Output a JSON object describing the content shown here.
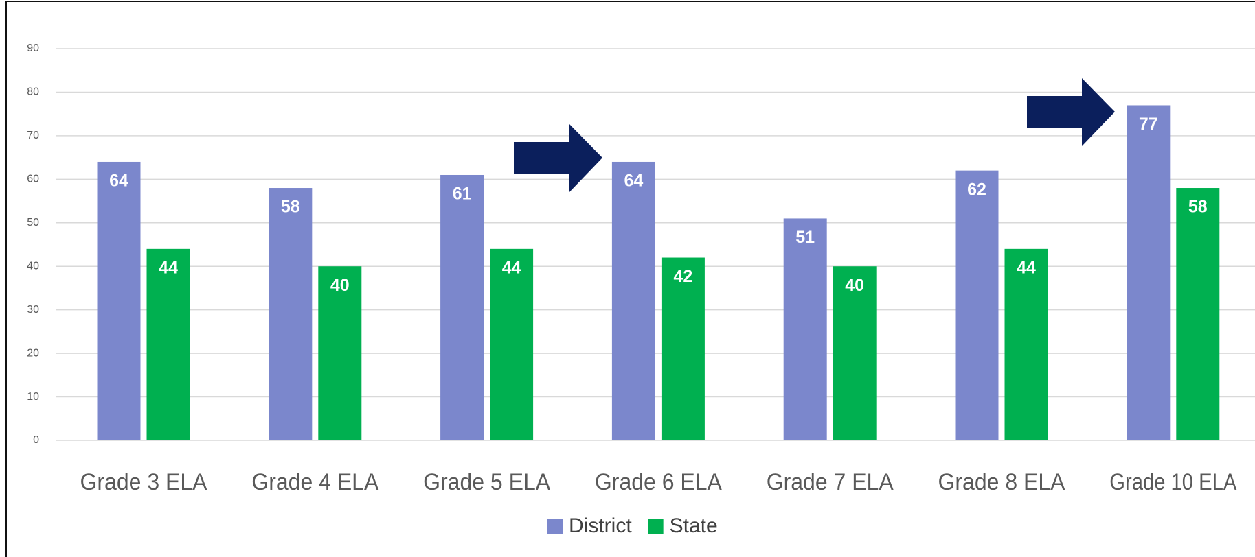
{
  "chart_data": {
    "type": "bar",
    "categories": [
      "Grade 3 ELA",
      "Grade 4 ELA",
      "Grade 5 ELA",
      "Grade 6 ELA",
      "Grade 7 ELA",
      "Grade 8 ELA",
      "Grade 10 ELA"
    ],
    "series": [
      {
        "name": "District",
        "color": "#7b87cc",
        "values": [
          64,
          58,
          61,
          64,
          51,
          62,
          77
        ]
      },
      {
        "name": "State",
        "color": "#00b050",
        "values": [
          44,
          40,
          44,
          42,
          40,
          44,
          58
        ]
      }
    ],
    "ylim": [
      0,
      90
    ],
    "yticks": [
      0,
      10,
      20,
      30,
      40,
      50,
      60,
      70,
      80,
      90
    ],
    "grid": true,
    "legend": "bottom",
    "data_labels": true
  }
}
